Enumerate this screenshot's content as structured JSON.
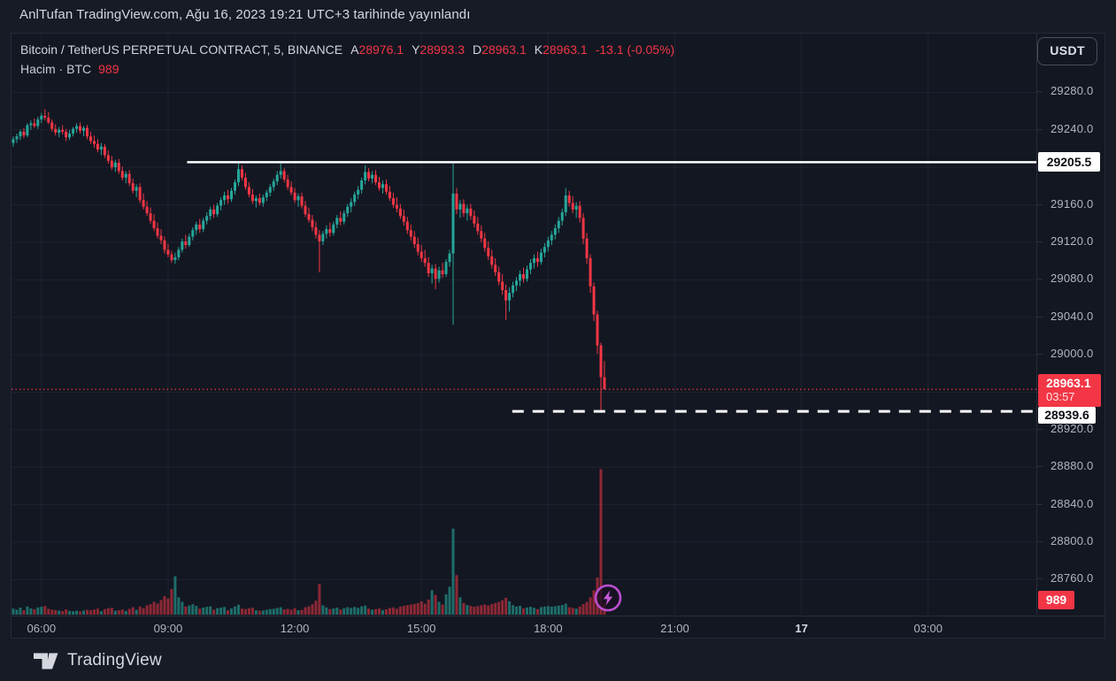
{
  "published_bar": {
    "text": "AnlTufan TradingView.com, Ağu 16, 2023 19:21 UTC+3 tarihinde yayınlandı"
  },
  "header": {
    "symbol_title": "Bitcoin / TetherUS PERPETUAL CONTRACT, 5, BINANCE",
    "ohlc": [
      {
        "label": "A",
        "value": "28976.1"
      },
      {
        "label": "Y",
        "value": "28993.3"
      },
      {
        "label": "D",
        "value": "28963.1"
      },
      {
        "label": "K",
        "value": "28963.1"
      }
    ],
    "change": "-13.1 (-0.05%)",
    "volume_label": "Hacim · BTC",
    "volume_value": "989",
    "currency_button": "USDT"
  },
  "footer": {
    "brand": "TradingView"
  },
  "colors": {
    "up": "#26a69a",
    "down": "#f23645",
    "vol_up": "rgba(38,166,154,0.6)",
    "vol_down": "rgba(242,54,69,0.55)",
    "grid": "rgba(178,188,210,0.07)",
    "axis_text": "#b2b5be",
    "level_white": "#ffffff",
    "last_price": "#f23645",
    "marker_purple": "#bb4fd0"
  },
  "chart_data": {
    "type": "candlestick",
    "symbol": "BTCUSDT Perpetual, BINANCE",
    "interval_minutes": 5,
    "session_start_hour": 5.3333,
    "price_ticks": [
      29280.0,
      29240.0,
      29200.0,
      29160.0,
      29120.0,
      29080.0,
      29040.0,
      29000.0,
      28960.0,
      28920.0,
      28880.0,
      28840.0,
      28800.0,
      28760.0
    ],
    "time_ticks": [
      {
        "label": "06:00",
        "hour": 6
      },
      {
        "label": "09:00",
        "hour": 9
      },
      {
        "label": "12:00",
        "hour": 12
      },
      {
        "label": "15:00",
        "hour": 15
      },
      {
        "label": "18:00",
        "hour": 18
      },
      {
        "label": "21:00",
        "hour": 21
      },
      {
        "label": "17",
        "hour": 24,
        "bold": true
      },
      {
        "label": "03:00",
        "hour": 27
      }
    ],
    "visible_price_range": [
      28723,
      29343
    ],
    "levels": {
      "resistance": {
        "price": 29205.5,
        "label": "29205.5",
        "style": "solid-white",
        "start_hour": 9.45
      },
      "low_ray": {
        "price": 28939.6,
        "label": "28939.6",
        "style": "dashed-white",
        "start_hour": 17.15
      },
      "last_price": {
        "price": 28963.1,
        "label": "28963.1",
        "countdown": "03:57",
        "style": "dotted-red"
      }
    },
    "volume_badge": "989",
    "marker": {
      "type": "lightning-bolt",
      "hour": 19.42
    },
    "candles": [
      [
        29226,
        29233,
        29222,
        29230,
        520
      ],
      [
        29230,
        29236,
        29226,
        29233,
        430
      ],
      [
        29233,
        29240,
        29229,
        29238,
        610
      ],
      [
        29238,
        29242,
        29231,
        29234,
        380
      ],
      [
        29234,
        29247,
        29232,
        29245,
        700
      ],
      [
        29245,
        29250,
        29240,
        29247,
        540
      ],
      [
        29247,
        29252,
        29242,
        29244,
        460
      ],
      [
        29244,
        29254,
        29241,
        29251,
        620
      ],
      [
        29251,
        29258,
        29247,
        29255,
        680
      ],
      [
        29255,
        29262,
        29250,
        29253,
        750
      ],
      [
        29253,
        29259,
        29246,
        29248,
        500
      ],
      [
        29248,
        29251,
        29238,
        29241,
        430
      ],
      [
        29241,
        29246,
        29234,
        29237,
        390
      ],
      [
        29237,
        29243,
        29232,
        29240,
        350
      ],
      [
        29240,
        29245,
        29235,
        29238,
        310
      ],
      [
        29238,
        29241,
        29228,
        29232,
        460
      ],
      [
        29232,
        29240,
        29229,
        29236,
        330
      ],
      [
        29236,
        29243,
        29233,
        29241,
        290
      ],
      [
        29241,
        29247,
        29237,
        29244,
        340
      ],
      [
        29244,
        29248,
        29236,
        29239,
        280
      ],
      [
        29239,
        29244,
        29233,
        29242,
        360
      ],
      [
        29242,
        29245,
        29230,
        29233,
        410
      ],
      [
        29233,
        29238,
        29225,
        29228,
        380
      ],
      [
        29228,
        29234,
        29221,
        29225,
        440
      ],
      [
        29225,
        29230,
        29216,
        29219,
        520
      ],
      [
        29219,
        29226,
        29213,
        29222,
        300
      ],
      [
        29222,
        29225,
        29210,
        29213,
        470
      ],
      [
        29213,
        29218,
        29204,
        29207,
        550
      ],
      [
        29207,
        29212,
        29197,
        29200,
        600
      ],
      [
        29200,
        29208,
        29195,
        29205,
        340
      ],
      [
        29205,
        29209,
        29193,
        29196,
        380
      ],
      [
        29196,
        29201,
        29186,
        29189,
        450
      ],
      [
        29189,
        29196,
        29183,
        29193,
        320
      ],
      [
        29193,
        29197,
        29180,
        29183,
        500
      ],
      [
        29183,
        29188,
        29172,
        29175,
        640
      ],
      [
        29175,
        29182,
        29168,
        29179,
        420
      ],
      [
        29179,
        29183,
        29162,
        29165,
        700
      ],
      [
        29165,
        29172,
        29155,
        29158,
        560
      ],
      [
        29158,
        29164,
        29148,
        29151,
        800
      ],
      [
        29151,
        29157,
        29140,
        29143,
        900
      ],
      [
        29143,
        29150,
        29132,
        29135,
        1100
      ],
      [
        29135,
        29141,
        29124,
        29127,
        950
      ],
      [
        29127,
        29134,
        29118,
        29122,
        1250
      ],
      [
        29122,
        29126,
        29108,
        29112,
        1600
      ],
      [
        29112,
        29118,
        29104,
        29107,
        1400
      ],
      [
        29107,
        29111,
        29098,
        29101,
        2200
      ],
      [
        29101,
        29109,
        29097,
        29104,
        3300
      ],
      [
        29104,
        29115,
        29101,
        29112,
        1500
      ],
      [
        29112,
        29124,
        29109,
        29121,
        1100
      ],
      [
        29121,
        29128,
        29113,
        29117,
        700
      ],
      [
        29117,
        29129,
        29115,
        29126,
        800
      ],
      [
        29126,
        29136,
        29122,
        29133,
        900
      ],
      [
        29133,
        29142,
        29128,
        29139,
        750
      ],
      [
        29139,
        29145,
        29130,
        29134,
        520
      ],
      [
        29134,
        29146,
        29131,
        29143,
        610
      ],
      [
        29143,
        29152,
        29139,
        29148,
        680
      ],
      [
        29148,
        29158,
        29144,
        29155,
        720
      ],
      [
        29155,
        29160,
        29146,
        29150,
        430
      ],
      [
        29150,
        29162,
        29147,
        29159,
        560
      ],
      [
        29159,
        29168,
        29154,
        29165,
        610
      ],
      [
        29165,
        29174,
        29160,
        29170,
        660
      ],
      [
        29170,
        29176,
        29161,
        29166,
        380
      ],
      [
        29166,
        29178,
        29163,
        29175,
        540
      ],
      [
        29175,
        29187,
        29171,
        29184,
        700
      ],
      [
        29184,
        29205,
        29180,
        29198,
        850
      ],
      [
        29198,
        29202,
        29186,
        29189,
        520
      ],
      [
        29189,
        29194,
        29176,
        29179,
        480
      ],
      [
        29179,
        29184,
        29168,
        29171,
        550
      ],
      [
        29171,
        29177,
        29161,
        29164,
        600
      ],
      [
        29164,
        29170,
        29157,
        29167,
        380
      ],
      [
        29167,
        29172,
        29159,
        29162,
        340
      ],
      [
        29162,
        29171,
        29158,
        29168,
        360
      ],
      [
        29168,
        29176,
        29164,
        29173,
        420
      ],
      [
        29173,
        29182,
        29169,
        29179,
        480
      ],
      [
        29179,
        29188,
        29175,
        29185,
        510
      ],
      [
        29185,
        29196,
        29181,
        29192,
        570
      ],
      [
        29192,
        29204,
        29188,
        29196,
        640
      ],
      [
        29196,
        29199,
        29184,
        29187,
        450
      ],
      [
        29187,
        29192,
        29176,
        29179,
        500
      ],
      [
        29179,
        29185,
        29170,
        29173,
        420
      ],
      [
        29173,
        29178,
        29162,
        29165,
        560
      ],
      [
        29165,
        29172,
        29158,
        29169,
        380
      ],
      [
        29169,
        29173,
        29156,
        29159,
        410
      ],
      [
        29159,
        29164,
        29147,
        29150,
        640
      ],
      [
        29150,
        29157,
        29141,
        29144,
        720
      ],
      [
        29144,
        29149,
        29132,
        29136,
        900
      ],
      [
        29136,
        29142,
        29124,
        29128,
        1200
      ],
      [
        29128,
        29133,
        29088,
        29121,
        2650
      ],
      [
        29121,
        29132,
        29117,
        29129,
        800
      ],
      [
        29129,
        29138,
        29124,
        29134,
        620
      ],
      [
        29134,
        29141,
        29126,
        29130,
        480
      ],
      [
        29130,
        29142,
        29127,
        29139,
        530
      ],
      [
        29139,
        29149,
        29135,
        29146,
        610
      ],
      [
        29146,
        29153,
        29138,
        29142,
        440
      ],
      [
        29142,
        29154,
        29139,
        29151,
        560
      ],
      [
        29151,
        29161,
        29147,
        29158,
        640
      ],
      [
        29158,
        29167,
        29152,
        29163,
        580
      ],
      [
        29163,
        29174,
        29159,
        29171,
        660
      ],
      [
        29171,
        29180,
        29166,
        29176,
        590
      ],
      [
        29176,
        29189,
        29172,
        29186,
        710
      ],
      [
        29186,
        29202,
        29182,
        29195,
        780
      ],
      [
        29195,
        29199,
        29185,
        29188,
        520
      ],
      [
        29188,
        29196,
        29183,
        29192,
        430
      ],
      [
        29192,
        29197,
        29181,
        29184,
        480
      ],
      [
        29184,
        29190,
        29175,
        29178,
        540
      ],
      [
        29178,
        29186,
        29172,
        29182,
        390
      ],
      [
        29182,
        29187,
        29171,
        29174,
        460
      ],
      [
        29174,
        29180,
        29164,
        29167,
        580
      ],
      [
        29167,
        29173,
        29157,
        29160,
        620
      ],
      [
        29160,
        29168,
        29152,
        29156,
        500
      ],
      [
        29156,
        29161,
        29145,
        29148,
        700
      ],
      [
        29148,
        29155,
        29138,
        29142,
        760
      ],
      [
        29142,
        29147,
        29129,
        29133,
        820
      ],
      [
        29133,
        29139,
        29122,
        29126,
        870
      ],
      [
        29126,
        29132,
        29114,
        29118,
        930
      ],
      [
        29118,
        29125,
        29106,
        29110,
        990
      ],
      [
        29110,
        29117,
        29099,
        29103,
        1150
      ],
      [
        29103,
        29112,
        29094,
        29098,
        940
      ],
      [
        29098,
        29104,
        29083,
        29087,
        1300
      ],
      [
        29087,
        29096,
        29076,
        29092,
        2100
      ],
      [
        29092,
        29097,
        29070,
        29081,
        1700
      ],
      [
        29081,
        29094,
        29077,
        29090,
        1100
      ],
      [
        29090,
        29098,
        29082,
        29086,
        860
      ],
      [
        29086,
        29102,
        29083,
        29099,
        1750
      ],
      [
        29099,
        29112,
        29094,
        29108,
        2400
      ],
      [
        29108,
        29204,
        29032,
        29172,
        7400
      ],
      [
        29172,
        29178,
        29150,
        29155,
        3400
      ],
      [
        29155,
        29165,
        29146,
        29161,
        1500
      ],
      [
        29161,
        29166,
        29147,
        29151,
        1000
      ],
      [
        29151,
        29160,
        29143,
        29156,
        820
      ],
      [
        29156,
        29161,
        29144,
        29148,
        760
      ],
      [
        29148,
        29154,
        29136,
        29140,
        690
      ],
      [
        29140,
        29147,
        29128,
        29132,
        730
      ],
      [
        29132,
        29138,
        29120,
        29124,
        810
      ],
      [
        29124,
        29130,
        29110,
        29114,
        880
      ],
      [
        29114,
        29121,
        29101,
        29105,
        790
      ],
      [
        29105,
        29112,
        29092,
        29096,
        920
      ],
      [
        29096,
        29103,
        29084,
        29088,
        1000
      ],
      [
        29088,
        29094,
        29074,
        29078,
        1100
      ],
      [
        29078,
        29086,
        29064,
        29069,
        1250
      ],
      [
        29069,
        29075,
        29037,
        29058,
        1450
      ],
      [
        29058,
        29072,
        29046,
        29066,
        1150
      ],
      [
        29066,
        29078,
        29061,
        29074,
        820
      ],
      [
        29074,
        29083,
        29068,
        29079,
        700
      ],
      [
        29079,
        29090,
        29073,
        29086,
        760
      ],
      [
        29086,
        29093,
        29077,
        29081,
        540
      ],
      [
        29081,
        29095,
        29078,
        29091,
        620
      ],
      [
        29091,
        29102,
        29086,
        29098,
        680
      ],
      [
        29098,
        29107,
        29092,
        29103,
        590
      ],
      [
        29103,
        29110,
        29094,
        29099,
        480
      ],
      [
        29099,
        29113,
        29096,
        29109,
        650
      ],
      [
        29109,
        29119,
        29104,
        29115,
        700
      ],
      [
        29115,
        29126,
        29110,
        29122,
        740
      ],
      [
        29122,
        29132,
        29117,
        29128,
        690
      ],
      [
        29128,
        29139,
        29123,
        29135,
        720
      ],
      [
        29135,
        29147,
        29130,
        29143,
        780
      ],
      [
        29143,
        29156,
        29138,
        29152,
        830
      ],
      [
        29152,
        29178,
        29148,
        29170,
        950
      ],
      [
        29170,
        29175,
        29158,
        29162,
        640
      ],
      [
        29162,
        29169,
        29151,
        29155,
        580
      ],
      [
        29155,
        29163,
        29146,
        29159,
        520
      ],
      [
        29159,
        29164,
        29141,
        29146,
        700
      ],
      [
        29146,
        29151,
        29118,
        29124,
        900
      ],
      [
        29124,
        29130,
        29097,
        29103,
        1100
      ],
      [
        29103,
        29107,
        29066,
        29073,
        1500
      ],
      [
        29073,
        29077,
        29036,
        29043,
        2100
      ],
      [
        29043,
        29047,
        29001,
        29010,
        3200
      ],
      [
        29010,
        29013,
        28939.6,
        28976.2,
        12500
      ],
      [
        28976.1,
        28993.3,
        28963.1,
        28963.1,
        989
      ]
    ]
  }
}
